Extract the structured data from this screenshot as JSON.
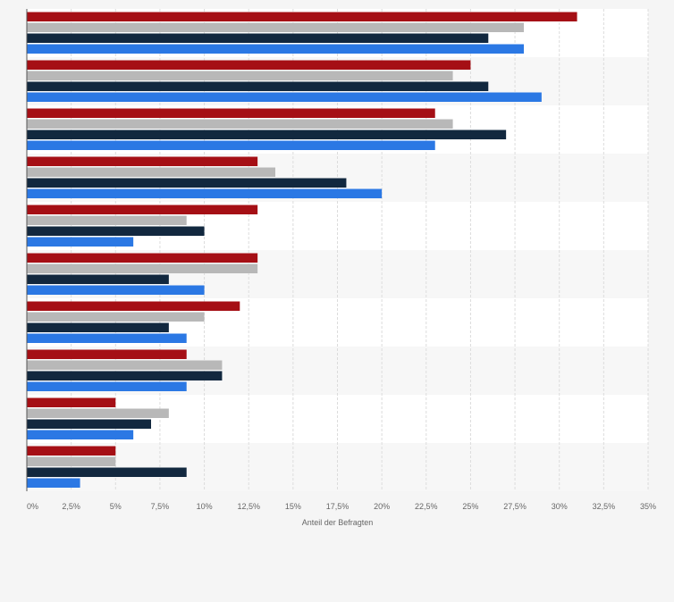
{
  "chart_data": {
    "type": "bar",
    "orientation": "horizontal",
    "title": "",
    "xlabel": "Anteil der Befragten",
    "ylabel": "",
    "xlim": [
      0,
      35
    ],
    "x_ticks": [
      0,
      2.5,
      5,
      7.5,
      10,
      12.5,
      15,
      17.5,
      20,
      22.5,
      25,
      27.5,
      30,
      32.5,
      35
    ],
    "x_tick_labels": [
      "0%",
      "2,5%",
      "5%",
      "7,5%",
      "10%",
      "12,5%",
      "15%",
      "17,5%",
      "20%",
      "22,5%",
      "25%",
      "27,5%",
      "30%",
      "32,5%",
      "35%"
    ],
    "grid": true,
    "legend": "none",
    "categories": [
      "",
      "",
      "",
      "",
      "",
      "",
      "",
      "",
      "",
      ""
    ],
    "series": [
      {
        "color": "#a50f15",
        "values": [
          31,
          25,
          23,
          13,
          13,
          13,
          12,
          9,
          5,
          5
        ]
      },
      {
        "color": "#b8b8b8",
        "values": [
          28,
          24,
          24,
          14,
          9,
          13,
          10,
          11,
          8,
          5
        ]
      },
      {
        "color": "#12283f",
        "values": [
          26,
          26,
          27,
          18,
          10,
          8,
          8,
          11,
          7,
          9
        ]
      },
      {
        "color": "#2b78e4",
        "values": [
          28,
          29,
          23,
          20,
          6,
          10,
          9,
          9,
          6,
          3
        ]
      }
    ]
  }
}
